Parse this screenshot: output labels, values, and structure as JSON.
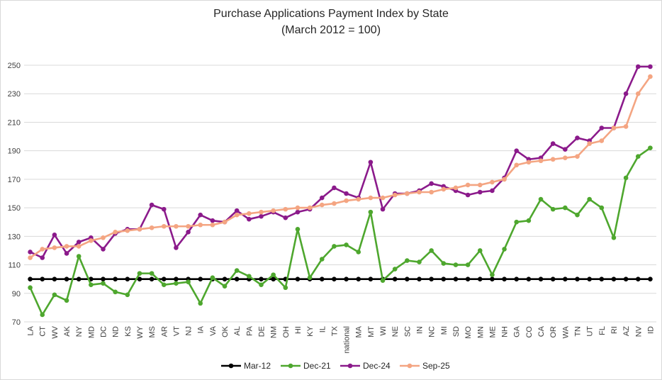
{
  "chart_data": {
    "type": "line",
    "title": "Purchase Applications Payment Index by State",
    "subtitle": "(March 2012 = 100)",
    "xlabel": "",
    "ylabel": "",
    "ylim": [
      70,
      250
    ],
    "yticks": [
      70,
      90,
      110,
      130,
      150,
      170,
      190,
      210,
      230,
      250
    ],
    "grid": "horizontal",
    "legend_position": "bottom",
    "categories": [
      "LA",
      "CT",
      "WV",
      "AK",
      "NY",
      "MD",
      "DC",
      "ND",
      "KS",
      "WY",
      "MS",
      "AR",
      "VT",
      "NJ",
      "IA",
      "VA",
      "OK",
      "AL",
      "PA",
      "DE",
      "NM",
      "OH",
      "HI",
      "KY",
      "IL",
      "TX",
      "national",
      "MA",
      "MT",
      "WI",
      "NE",
      "SC",
      "IN",
      "NC",
      "MI",
      "SD",
      "MO",
      "MN",
      "ME",
      "NH",
      "GA",
      "CO",
      "CA",
      "OR",
      "WA",
      "TN",
      "UT",
      "FL",
      "RI",
      "AZ",
      "NV",
      "ID"
    ],
    "series": [
      {
        "name": "Mar-12",
        "color": "#000000",
        "values": [
          100,
          100,
          100,
          100,
          100,
          100,
          100,
          100,
          100,
          100,
          100,
          100,
          100,
          100,
          100,
          100,
          100,
          100,
          100,
          100,
          100,
          100,
          100,
          100,
          100,
          100,
          100,
          100,
          100,
          100,
          100,
          100,
          100,
          100,
          100,
          100,
          100,
          100,
          100,
          100,
          100,
          100,
          100,
          100,
          100,
          100,
          100,
          100,
          100,
          100,
          100,
          100
        ]
      },
      {
        "name": "Dec-21",
        "color": "#4ea72e",
        "values": [
          94,
          75,
          89,
          85,
          116,
          96,
          97,
          91,
          89,
          104,
          104,
          96,
          97,
          98,
          83,
          101,
          95,
          106,
          102,
          96,
          103,
          94,
          135,
          101,
          114,
          123,
          124,
          119,
          147,
          99,
          107,
          113,
          112,
          120,
          111,
          110,
          110,
          120,
          103,
          121,
          140,
          141,
          156,
          149,
          150,
          145,
          156,
          150,
          129,
          171,
          186,
          192
        ]
      },
      {
        "name": "Dec-24",
        "color": "#8b1a8b",
        "values": [
          119,
          115,
          131,
          118,
          126,
          129,
          121,
          132,
          135,
          135,
          152,
          149,
          122,
          133,
          145,
          141,
          140,
          148,
          142,
          144,
          147,
          143,
          147,
          149,
          157,
          164,
          160,
          157,
          182,
          149,
          160,
          160,
          162,
          167,
          165,
          162,
          159,
          161,
          162,
          171,
          190,
          184,
          185,
          195,
          191,
          199,
          197,
          206,
          206,
          230,
          249,
          249
        ]
      },
      {
        "name": "Sep-25",
        "color": "#f4a582",
        "values": [
          115,
          121,
          122,
          123,
          123,
          127,
          129,
          133,
          134,
          135,
          136,
          137,
          137,
          137,
          138,
          138,
          140,
          145,
          146,
          147,
          148,
          149,
          150,
          150,
          152,
          153,
          155,
          156,
          157,
          157,
          159,
          160,
          161,
          161,
          163,
          164,
          166,
          166,
          168,
          170,
          180,
          182,
          183,
          184,
          185,
          186,
          195,
          197,
          206,
          207,
          230,
          242
        ]
      }
    ]
  }
}
